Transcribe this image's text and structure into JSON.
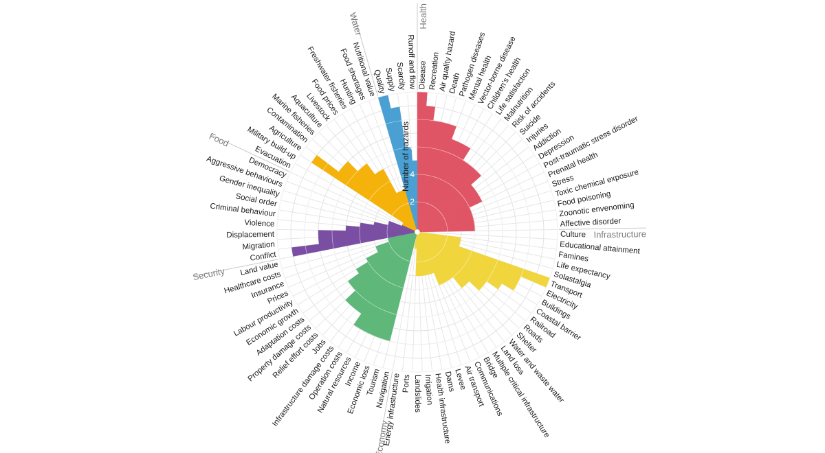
{
  "chart_data": {
    "type": "bar",
    "polar": true,
    "ylabel": "Number of hazards",
    "ylim": [
      0,
      10
    ],
    "yticks": [
      2,
      4,
      6,
      8,
      10
    ],
    "grid": true,
    "groups": [
      {
        "name": "Health",
        "color": "#e05565",
        "items": [
          {
            "label": "Disease",
            "value": 10
          },
          {
            "label": "Recreation",
            "value": 9
          },
          {
            "label": "Air quality hazard",
            "value": 8
          },
          {
            "label": "Death",
            "value": 8
          },
          {
            "label": "Pathogen diseases",
            "value": 8
          },
          {
            "label": "Mental health",
            "value": 7
          },
          {
            "label": "Vector-borne disease",
            "value": 7
          },
          {
            "label": "Children's health",
            "value": 7
          },
          {
            "label": "Life satisfaction",
            "value": 6
          },
          {
            "label": "Malnutrition",
            "value": 6
          },
          {
            "label": "Risk of accidents",
            "value": 6
          },
          {
            "label": "Suicide",
            "value": 6
          },
          {
            "label": "Injuries",
            "value": 5
          },
          {
            "label": "Addiction",
            "value": 5
          },
          {
            "label": "Depression",
            "value": 5
          },
          {
            "label": "Post-traumatic stress disorder",
            "value": 5
          },
          {
            "label": "Prenatal health",
            "value": 4
          },
          {
            "label": "Stress",
            "value": 4
          },
          {
            "label": "Toxic chemical exposure",
            "value": 4
          },
          {
            "label": "Food poisoning",
            "value": 4
          },
          {
            "label": "Zoonotic envenoming",
            "value": 4
          },
          {
            "label": "Affective disorder",
            "value": 4
          }
        ]
      },
      {
        "name": "Infrastructure",
        "color": "#f0d53c",
        "items": [
          {
            "label": "Culture",
            "value": 0
          },
          {
            "label": "Educational attainment",
            "value": 0
          },
          {
            "label": "Famines",
            "value": 3
          },
          {
            "label": "Life expectancy",
            "value": 3
          },
          {
            "label": "Solastalgia",
            "value": 3
          },
          {
            "label": "Transport",
            "value": 10
          },
          {
            "label": "Electricity",
            "value": 8
          },
          {
            "label": "Buildings",
            "value": 8
          },
          {
            "label": "Coastal barrier",
            "value": 7
          },
          {
            "label": "Railroad",
            "value": 6
          },
          {
            "label": "Roads",
            "value": 6
          },
          {
            "label": "Shelter",
            "value": 5
          },
          {
            "label": "Water and waste water",
            "value": 5
          },
          {
            "label": "Land loss",
            "value": 4
          },
          {
            "label": "Multiple critical infrastructure",
            "value": 4
          },
          {
            "label": "Bridge",
            "value": 4
          },
          {
            "label": "Communications",
            "value": 4
          },
          {
            "label": "Air transport",
            "value": 3
          },
          {
            "label": "Levee",
            "value": 3
          },
          {
            "label": "Dams",
            "value": 3
          },
          {
            "label": "Health infrastructure",
            "value": 3
          },
          {
            "label": "Irrigation",
            "value": 3
          },
          {
            "label": "Landslides",
            "value": 3
          },
          {
            "label": "Ports",
            "value": 1
          },
          {
            "label": "Energy infrastructure",
            "value": 1
          }
        ]
      },
      {
        "name": "Economy",
        "color": "#5fb77a",
        "items": [
          {
            "label": "Navigation",
            "value": 0
          },
          {
            "label": "Tourism",
            "value": 8
          },
          {
            "label": "Economic loss",
            "value": 8
          },
          {
            "label": "Income",
            "value": 8
          },
          {
            "label": "Natural resources",
            "value": 8
          },
          {
            "label": "Operation costs",
            "value": 8
          },
          {
            "label": "Infrastructure damage costs",
            "value": 7
          },
          {
            "label": "Jobs",
            "value": 7
          },
          {
            "label": "Relief effort costs",
            "value": 7
          },
          {
            "label": "Property damage costs",
            "value": 6
          },
          {
            "label": "Adaptation costs",
            "value": 6
          },
          {
            "label": "Economic growth",
            "value": 5
          },
          {
            "label": "Labour productivity",
            "value": 4
          },
          {
            "label": "Prices",
            "value": 3
          },
          {
            "label": "Insurance",
            "value": 3
          },
          {
            "label": "Healthcare costs",
            "value": 2
          },
          {
            "label": "Land value",
            "value": 2
          }
        ]
      },
      {
        "name": "Security",
        "color": "#7a4fa3",
        "items": [
          {
            "label": "Conflict",
            "value": 9
          },
          {
            "label": "Migration",
            "value": 7
          },
          {
            "label": "Displacement",
            "value": 7
          },
          {
            "label": "Violence",
            "value": 5
          },
          {
            "label": "Criminal behaviour",
            "value": 4
          },
          {
            "label": "Social order",
            "value": 3
          },
          {
            "label": "Gender inequality",
            "value": 2
          },
          {
            "label": "Aggressive behaviours",
            "value": 2
          },
          {
            "label": "Democracy",
            "value": 1
          }
        ]
      },
      {
        "name": "Food",
        "color": "#f4b20a",
        "items": [
          {
            "label": "Evacuation",
            "value": 1
          },
          {
            "label": "Military build-up",
            "value": 1
          },
          {
            "label": "Agriculture",
            "value": 9
          },
          {
            "label": "Contamination",
            "value": 7
          },
          {
            "label": "Marine fisheries",
            "value": 7
          },
          {
            "label": "Aquaculture",
            "value": 6
          },
          {
            "label": "Livestock",
            "value": 6
          },
          {
            "label": "Food prices",
            "value": 5
          },
          {
            "label": "Freshwater fisheries",
            "value": 5
          },
          {
            "label": "Hunting",
            "value": 3
          },
          {
            "label": "Food shortages",
            "value": 3
          },
          {
            "label": "Nutritional value",
            "value": 3
          }
        ]
      },
      {
        "name": "Water",
        "color": "#4aa0d2",
        "items": [
          {
            "label": "Quality",
            "value": 10
          },
          {
            "label": "Supply",
            "value": 9
          },
          {
            "label": "Scarcity",
            "value": 6
          },
          {
            "label": "Runoff and flow",
            "value": 5
          }
        ]
      }
    ]
  }
}
